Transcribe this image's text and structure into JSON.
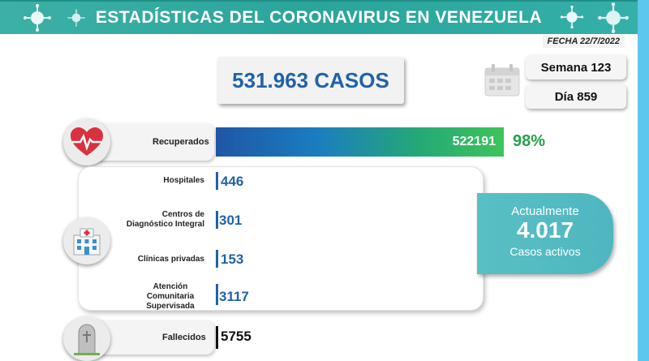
{
  "header": {
    "title": "ESTADÍSTICAS DEL CORONAVIRUS EN VENEZUELA"
  },
  "fecha": "FECHA 22/7/2022",
  "casos": "531.963 CASOS",
  "semana": "Semana 123",
  "dia": "Día 859",
  "recuperados": {
    "label": "Recuperados",
    "value": "522191",
    "percent": "98%",
    "fraction": 0.98
  },
  "centros": [
    {
      "label": "Hospitales",
      "value": "446"
    },
    {
      "label": "Centros de Diagnóstico Integral",
      "value": "301"
    },
    {
      "label": "Clínicas privadas",
      "value": "153"
    },
    {
      "label": "Atención Comunitaria Supervisada",
      "value": "3117"
    }
  ],
  "activos": {
    "label": "Actualmente",
    "value": "4.017",
    "sub": "Casos activos"
  },
  "fallecidos": {
    "label": "Fallecidos",
    "value": "5755"
  },
  "colors": {
    "header": "#2aa59c",
    "accent_blue": "#1f63a8",
    "accent_green": "#28a04a",
    "activos_box": "#58c0c4"
  },
  "icons": [
    "virus-icon",
    "calendar-icon",
    "heart-pulse-icon",
    "hospital-icon",
    "tombstone-icon"
  ]
}
